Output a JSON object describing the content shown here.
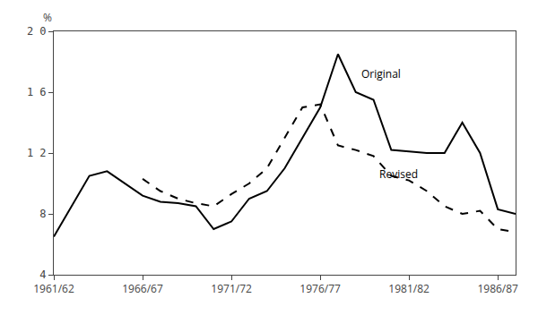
{
  "chart_data": {
    "type": "line",
    "ylabel": "%",
    "xlim": [
      0,
      26
    ],
    "xticks": [
      {
        "value": 0,
        "label": "1961/62"
      },
      {
        "value": 5,
        "label": "1966/67"
      },
      {
        "value": 10,
        "label": "1971/72"
      },
      {
        "value": 15,
        "label": "1976/77"
      },
      {
        "value": 20,
        "label": "1981/82"
      },
      {
        "value": 25,
        "label": "1986/87"
      }
    ],
    "ylim": [
      4,
      20
    ],
    "yticks": [
      4,
      8,
      {
        "value": 12,
        "label": "1 2"
      },
      {
        "value": 16,
        "label": "1 6"
      },
      {
        "value": 20,
        "label": "2 0"
      }
    ],
    "grid": false,
    "series": [
      {
        "x": [
          0,
          1,
          2,
          3,
          4,
          5,
          6,
          7,
          8,
          9,
          10,
          11,
          12,
          13,
          14,
          15,
          16,
          17,
          18,
          19,
          20,
          21,
          22,
          23,
          24,
          25,
          26
        ],
        "values": [
          6.5,
          8.5,
          10.5,
          10.8,
          10.0,
          9.2,
          8.8,
          8.7,
          8.5,
          7.0,
          7.5,
          9.0,
          9.5,
          11.0,
          13.0,
          15.0,
          18.5,
          16.0,
          15.5,
          12.2,
          12.1,
          12.0,
          12.0,
          14.0,
          12.0,
          8.3,
          8.0
        ],
        "color": "#000000",
        "line_style": "solid"
      },
      {
        "x": [
          5,
          6,
          7,
          8,
          9,
          10,
          11,
          12,
          13,
          14,
          15,
          16,
          17,
          18,
          19,
          20,
          21,
          22,
          23,
          24,
          25,
          26
        ],
        "values": [
          10.3,
          9.5,
          9.0,
          8.7,
          8.5,
          9.3,
          10.0,
          11.0,
          13.0,
          15.0,
          15.2,
          12.5,
          12.2,
          11.8,
          10.5,
          10.2,
          9.5,
          8.5,
          8.0,
          8.2,
          7.0,
          6.8
        ],
        "color": "#000000",
        "line_style": "dashed"
      }
    ],
    "annotations": [
      {
        "text": "Original",
        "x": 17.2,
        "y": 17.2
      },
      {
        "text": "Revised",
        "x": 18.2,
        "y": 10.6
      }
    ]
  }
}
